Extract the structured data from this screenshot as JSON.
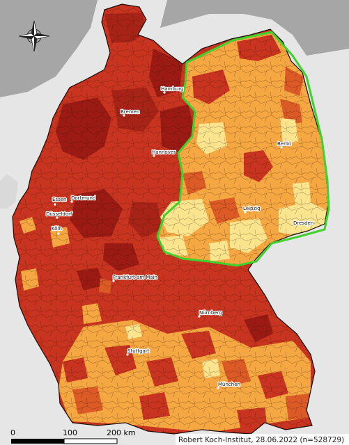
{
  "cities": [
    {
      "id": "hamburg",
      "name": "Hamburg"
    },
    {
      "id": "bremen",
      "name": "Bremen"
    },
    {
      "id": "hannover",
      "name": "Hannover"
    },
    {
      "id": "berlin",
      "name": "Berlin"
    },
    {
      "id": "essen",
      "name": "Essen"
    },
    {
      "id": "dortmund",
      "name": "Dortmund"
    },
    {
      "id": "duesseldorf",
      "name": "Düsseldorf"
    },
    {
      "id": "koeln",
      "name": "Köln"
    },
    {
      "id": "leipzig",
      "name": "Leipzig"
    },
    {
      "id": "dresden",
      "name": "Dresden"
    },
    {
      "id": "frankfurt",
      "name": "Frankfurt am Main"
    },
    {
      "id": "nuernberg",
      "name": "Nürnberg"
    },
    {
      "id": "stuttgart",
      "name": "Stuttgart"
    },
    {
      "id": "muenchen",
      "name": "München"
    }
  ],
  "scale_bar": {
    "labels": [
      "0",
      "100",
      "200 km"
    ]
  },
  "credit": "Robert Koch-Institut, 28.06.2022 (n=528729)",
  "colors": {
    "sea": "#a6a6a6",
    "neighbor_land": "#e6e6e6",
    "dark_red": "#9b1b14",
    "red": "#c8341f",
    "orange_red": "#db5a25",
    "orange": "#f5a742",
    "light_yellow": "#fbe48e",
    "east_outline": "#3fd12c"
  },
  "north_arrow_icon": "compass-rose-icon"
}
